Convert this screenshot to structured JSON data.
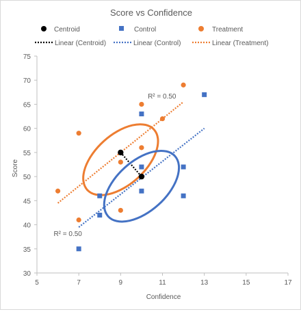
{
  "chart_data": {
    "type": "scatter",
    "title": "Score vs Confidence",
    "xlabel": "Confidence",
    "ylabel": "Score",
    "xlim": [
      5,
      17
    ],
    "ylim": [
      30,
      75
    ],
    "x_ticks": [
      5,
      7,
      9,
      11,
      13,
      15,
      17
    ],
    "y_ticks": [
      30,
      35,
      40,
      45,
      50,
      55,
      60,
      65,
      70,
      75
    ],
    "grid": false,
    "legend_position": "top",
    "legend": [
      "Centroid",
      "Control",
      "Treatment",
      "Linear (Centroid)",
      "Linear (Control)",
      "Linear (Treatment)"
    ],
    "series": [
      {
        "name": "Control",
        "marker": "square",
        "color": "#4472C4",
        "points": [
          [
            7,
            35
          ],
          [
            8,
            42
          ],
          [
            8,
            46
          ],
          [
            10,
            47
          ],
          [
            10,
            52
          ],
          [
            10,
            63
          ],
          [
            12,
            46
          ],
          [
            12,
            52
          ],
          [
            13,
            67
          ]
        ]
      },
      {
        "name": "Treatment",
        "marker": "circle",
        "color": "#ED7D31",
        "points": [
          [
            6,
            47
          ],
          [
            7,
            41
          ],
          [
            7,
            59
          ],
          [
            9,
            43
          ],
          [
            9,
            53
          ],
          [
            10,
            56
          ],
          [
            10,
            65
          ],
          [
            11,
            62
          ],
          [
            12,
            69
          ]
        ]
      },
      {
        "name": "Centroid",
        "marker": "circle",
        "color": "#000000",
        "points": [
          [
            9,
            55
          ],
          [
            10,
            50
          ]
        ]
      }
    ],
    "trendlines": [
      {
        "name": "Linear (Centroid)",
        "color": "#000000",
        "from": [
          9,
          55
        ],
        "to": [
          10,
          50
        ]
      },
      {
        "name": "Linear (Control)",
        "color": "#4472C4",
        "from": [
          7,
          39.5
        ],
        "to": [
          13,
          60
        ]
      },
      {
        "name": "Linear (Treatment)",
        "color": "#ED7D31",
        "from": [
          6,
          44.5
        ],
        "to": [
          12,
          65.5
        ]
      }
    ],
    "ellipses": [
      {
        "series": "Treatment",
        "color": "#ED7D31",
        "center": [
          9,
          53.5
        ],
        "x_radius": 2.15,
        "y_radius": 5.2,
        "tilt_deg": -42
      },
      {
        "series": "Control",
        "color": "#4472C4",
        "center": [
          10,
          48
        ],
        "x_radius": 2.15,
        "y_radius": 5.2,
        "tilt_deg": -42
      }
    ],
    "annotations": [
      {
        "text": "R² = 0.50",
        "at": [
          10.3,
          66.2
        ]
      },
      {
        "text": "R² = 0.50",
        "at": [
          5.8,
          37.7
        ]
      }
    ]
  }
}
